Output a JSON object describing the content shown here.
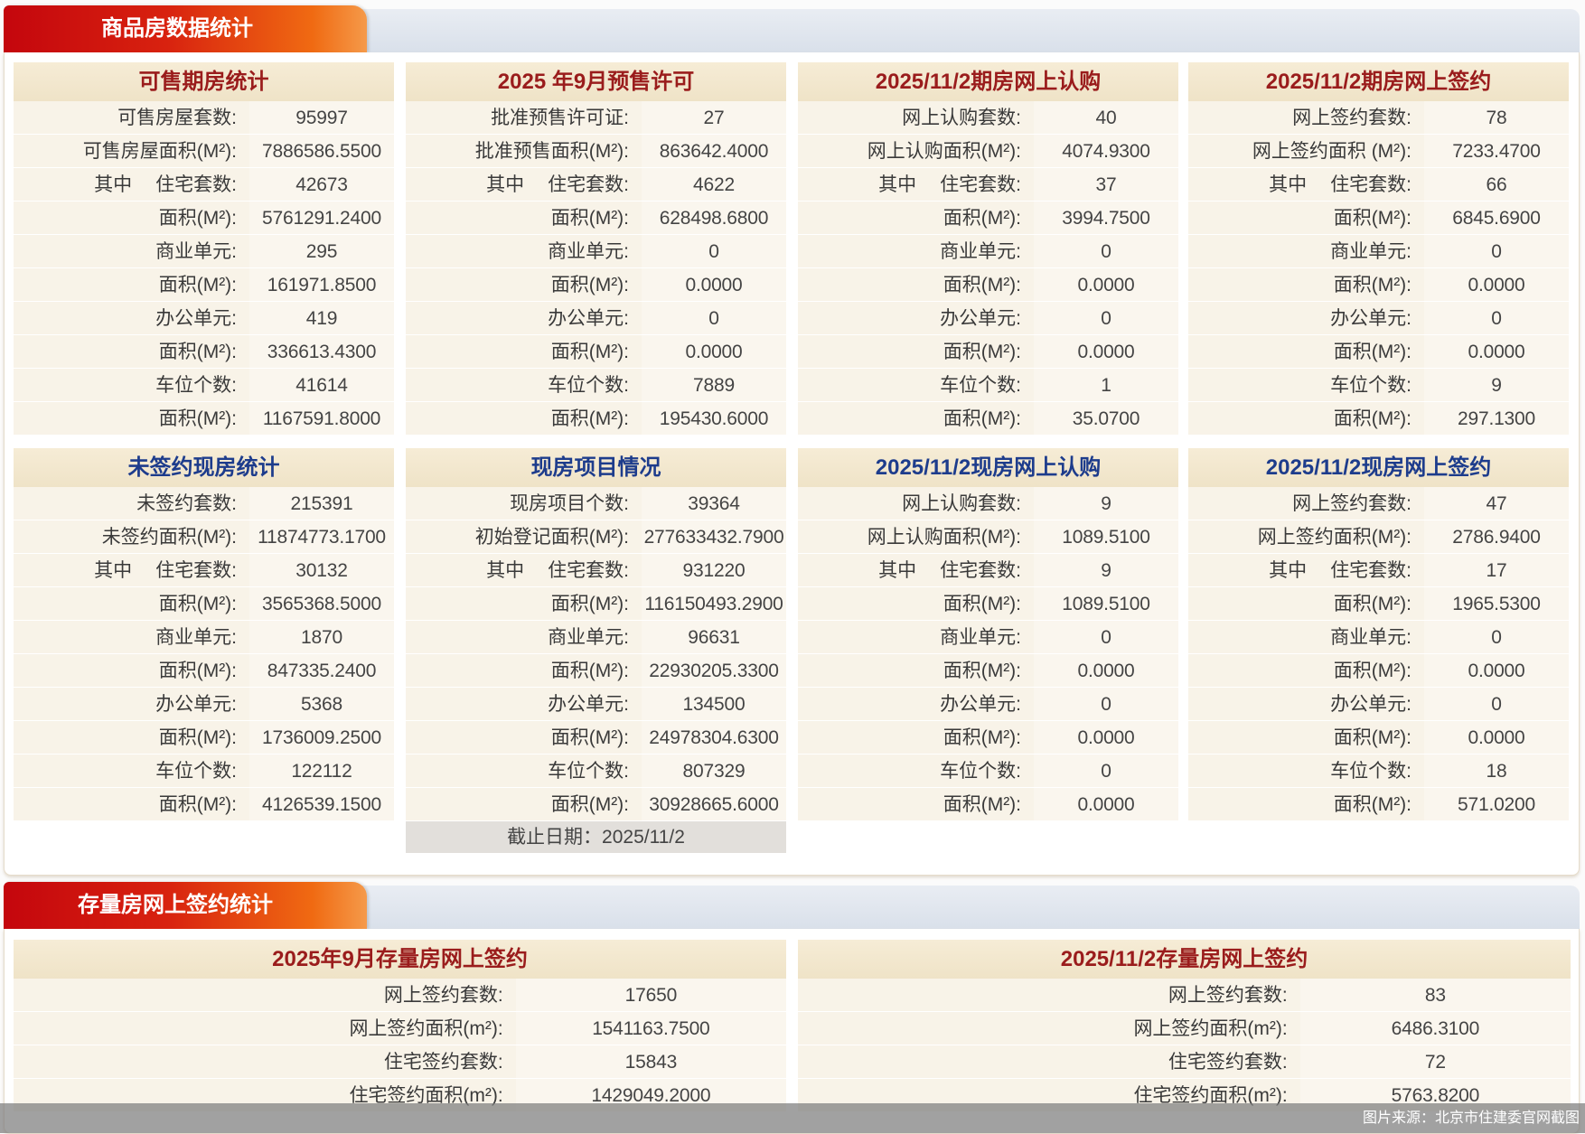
{
  "section1": {
    "title": "商品房数据统计",
    "panels": [
      {
        "title": "可售期房统计",
        "color": "red",
        "rows": [
          {
            "label": "可售房屋套数:",
            "value": "95997"
          },
          {
            "label": "可售房屋面积(M²):",
            "value": "7886586.5500"
          },
          {
            "prefix": "其中",
            "label": "住宅套数:",
            "value": "42673"
          },
          {
            "label": "面积(M²):",
            "value": "5761291.2400"
          },
          {
            "label": "商业单元:",
            "value": "295"
          },
          {
            "label": "面积(M²):",
            "value": "161971.8500"
          },
          {
            "label": "办公单元:",
            "value": "419"
          },
          {
            "label": "面积(M²):",
            "value": "336613.4300"
          },
          {
            "label": "车位个数:",
            "value": "41614"
          },
          {
            "label": "面积(M²):",
            "value": "1167591.8000"
          }
        ]
      },
      {
        "title": "2025 年9月预售许可",
        "color": "red",
        "rows": [
          {
            "label": "批准预售许可证:",
            "value": "27"
          },
          {
            "label": "批准预售面积(M²):",
            "value": "863642.4000"
          },
          {
            "prefix": "其中",
            "label": "住宅套数:",
            "value": "4622"
          },
          {
            "label": "面积(M²):",
            "value": "628498.6800"
          },
          {
            "label": "商业单元:",
            "value": "0"
          },
          {
            "label": "面积(M²):",
            "value": "0.0000"
          },
          {
            "label": "办公单元:",
            "value": "0"
          },
          {
            "label": "面积(M²):",
            "value": "0.0000"
          },
          {
            "label": "车位个数:",
            "value": "7889"
          },
          {
            "label": "面积(M²):",
            "value": "195430.6000"
          }
        ]
      },
      {
        "title": "2025/11/2期房网上认购",
        "color": "red",
        "rows": [
          {
            "label": "网上认购套数:",
            "value": "40"
          },
          {
            "label": "网上认购面积(M²):",
            "value": "4074.9300"
          },
          {
            "prefix": "其中",
            "label": "住宅套数:",
            "value": "37"
          },
          {
            "label": "面积(M²):",
            "value": "3994.7500"
          },
          {
            "label": "商业单元:",
            "value": "0"
          },
          {
            "label": "面积(M²):",
            "value": "0.0000"
          },
          {
            "label": "办公单元:",
            "value": "0"
          },
          {
            "label": "面积(M²):",
            "value": "0.0000"
          },
          {
            "label": "车位个数:",
            "value": "1"
          },
          {
            "label": "面积(M²):",
            "value": "35.0700"
          }
        ]
      },
      {
        "title": "2025/11/2期房网上签约",
        "color": "red",
        "rows": [
          {
            "label": "网上签约套数:",
            "value": "78"
          },
          {
            "label": "网上签约面积 (M²):",
            "value": "7233.4700"
          },
          {
            "prefix": "其中",
            "label": "住宅套数:",
            "value": "66"
          },
          {
            "label": "面积(M²):",
            "value": "6845.6900"
          },
          {
            "label": "商业单元:",
            "value": "0"
          },
          {
            "label": "面积(M²):",
            "value": "0.0000"
          },
          {
            "label": "办公单元:",
            "value": "0"
          },
          {
            "label": "面积(M²):",
            "value": "0.0000"
          },
          {
            "label": "车位个数:",
            "value": "9"
          },
          {
            "label": "面积(M²):",
            "value": "297.1300"
          }
        ]
      },
      {
        "title": "未签约现房统计",
        "color": "blue",
        "rows": [
          {
            "label": "未签约套数:",
            "value": "215391"
          },
          {
            "label": "未签约面积(M²):",
            "value": "11874773.1700"
          },
          {
            "prefix": "其中",
            "label": "住宅套数:",
            "value": "30132"
          },
          {
            "label": "面积(M²):",
            "value": "3565368.5000"
          },
          {
            "label": "商业单元:",
            "value": "1870"
          },
          {
            "label": "面积(M²):",
            "value": "847335.2400"
          },
          {
            "label": "办公单元:",
            "value": "5368"
          },
          {
            "label": "面积(M²):",
            "value": "1736009.2500"
          },
          {
            "label": "车位个数:",
            "value": "122112"
          },
          {
            "label": "面积(M²):",
            "value": "4126539.1500"
          }
        ]
      },
      {
        "title": "现房项目情况",
        "color": "blue",
        "footer": "截止日期：2025/11/2",
        "rows": [
          {
            "label": "现房项目个数:",
            "value": "39364"
          },
          {
            "label": "初始登记面积(M²):",
            "value": "277633432.7900"
          },
          {
            "prefix": "其中",
            "label": "住宅套数:",
            "value": "931220"
          },
          {
            "label": "面积(M²):",
            "value": "116150493.2900"
          },
          {
            "label": "商业单元:",
            "value": "96631"
          },
          {
            "label": "面积(M²):",
            "value": "22930205.3300"
          },
          {
            "label": "办公单元:",
            "value": "134500"
          },
          {
            "label": "面积(M²):",
            "value": "24978304.6300"
          },
          {
            "label": "车位个数:",
            "value": "807329"
          },
          {
            "label": "面积(M²):",
            "value": "30928665.6000"
          }
        ]
      },
      {
        "title": "2025/11/2现房网上认购",
        "color": "blue",
        "rows": [
          {
            "label": "网上认购套数:",
            "value": "9"
          },
          {
            "label": "网上认购面积(M²):",
            "value": "1089.5100"
          },
          {
            "prefix": "其中",
            "label": "住宅套数:",
            "value": "9"
          },
          {
            "label": "面积(M²):",
            "value": "1089.5100"
          },
          {
            "label": "商业单元:",
            "value": "0"
          },
          {
            "label": "面积(M²):",
            "value": "0.0000"
          },
          {
            "label": "办公单元:",
            "value": "0"
          },
          {
            "label": "面积(M²):",
            "value": "0.0000"
          },
          {
            "label": "车位个数:",
            "value": "0"
          },
          {
            "label": "面积(M²):",
            "value": "0.0000"
          }
        ]
      },
      {
        "title": "2025/11/2现房网上签约",
        "color": "blue",
        "rows": [
          {
            "label": "网上签约套数:",
            "value": "47"
          },
          {
            "label": "网上签约面积(M²):",
            "value": "2786.9400"
          },
          {
            "prefix": "其中",
            "label": "住宅套数:",
            "value": "17"
          },
          {
            "label": "面积(M²):",
            "value": "1965.5300"
          },
          {
            "label": "商业单元:",
            "value": "0"
          },
          {
            "label": "面积(M²):",
            "value": "0.0000"
          },
          {
            "label": "办公单元:",
            "value": "0"
          },
          {
            "label": "面积(M²):",
            "value": "0.0000"
          },
          {
            "label": "车位个数:",
            "value": "18"
          },
          {
            "label": "面积(M²):",
            "value": "571.0200"
          }
        ]
      }
    ]
  },
  "section2": {
    "title": "存量房网上签约统计",
    "panels": [
      {
        "title": "2025年9月存量房网上签约",
        "color": "red",
        "rows": [
          {
            "label": "网上签约套数:",
            "value": "17650"
          },
          {
            "label": "网上签约面积(m²):",
            "value": "1541163.7500"
          },
          {
            "label": "住宅签约套数:",
            "value": "15843"
          },
          {
            "label": "住宅签约面积(m²):",
            "value": "1429049.2000"
          }
        ]
      },
      {
        "title": "2025/11/2存量房网上签约",
        "color": "red",
        "rows": [
          {
            "label": "网上签约套数:",
            "value": "83"
          },
          {
            "label": "网上签约面积(m²):",
            "value": "6486.3100"
          },
          {
            "label": "住宅签约套数:",
            "value": "72"
          },
          {
            "label": "住宅签约面积(m²):",
            "value": "5763.8200"
          }
        ]
      }
    ]
  },
  "caption": "图片来源：北京市住建委官网截图",
  "colors": {
    "title_red": "#9a1c1c",
    "title_blue": "#1d3c8c",
    "tab_red": "#c4060d",
    "tab_orange": "#f06a12",
    "panel_bg": "#f8f3e8"
  }
}
